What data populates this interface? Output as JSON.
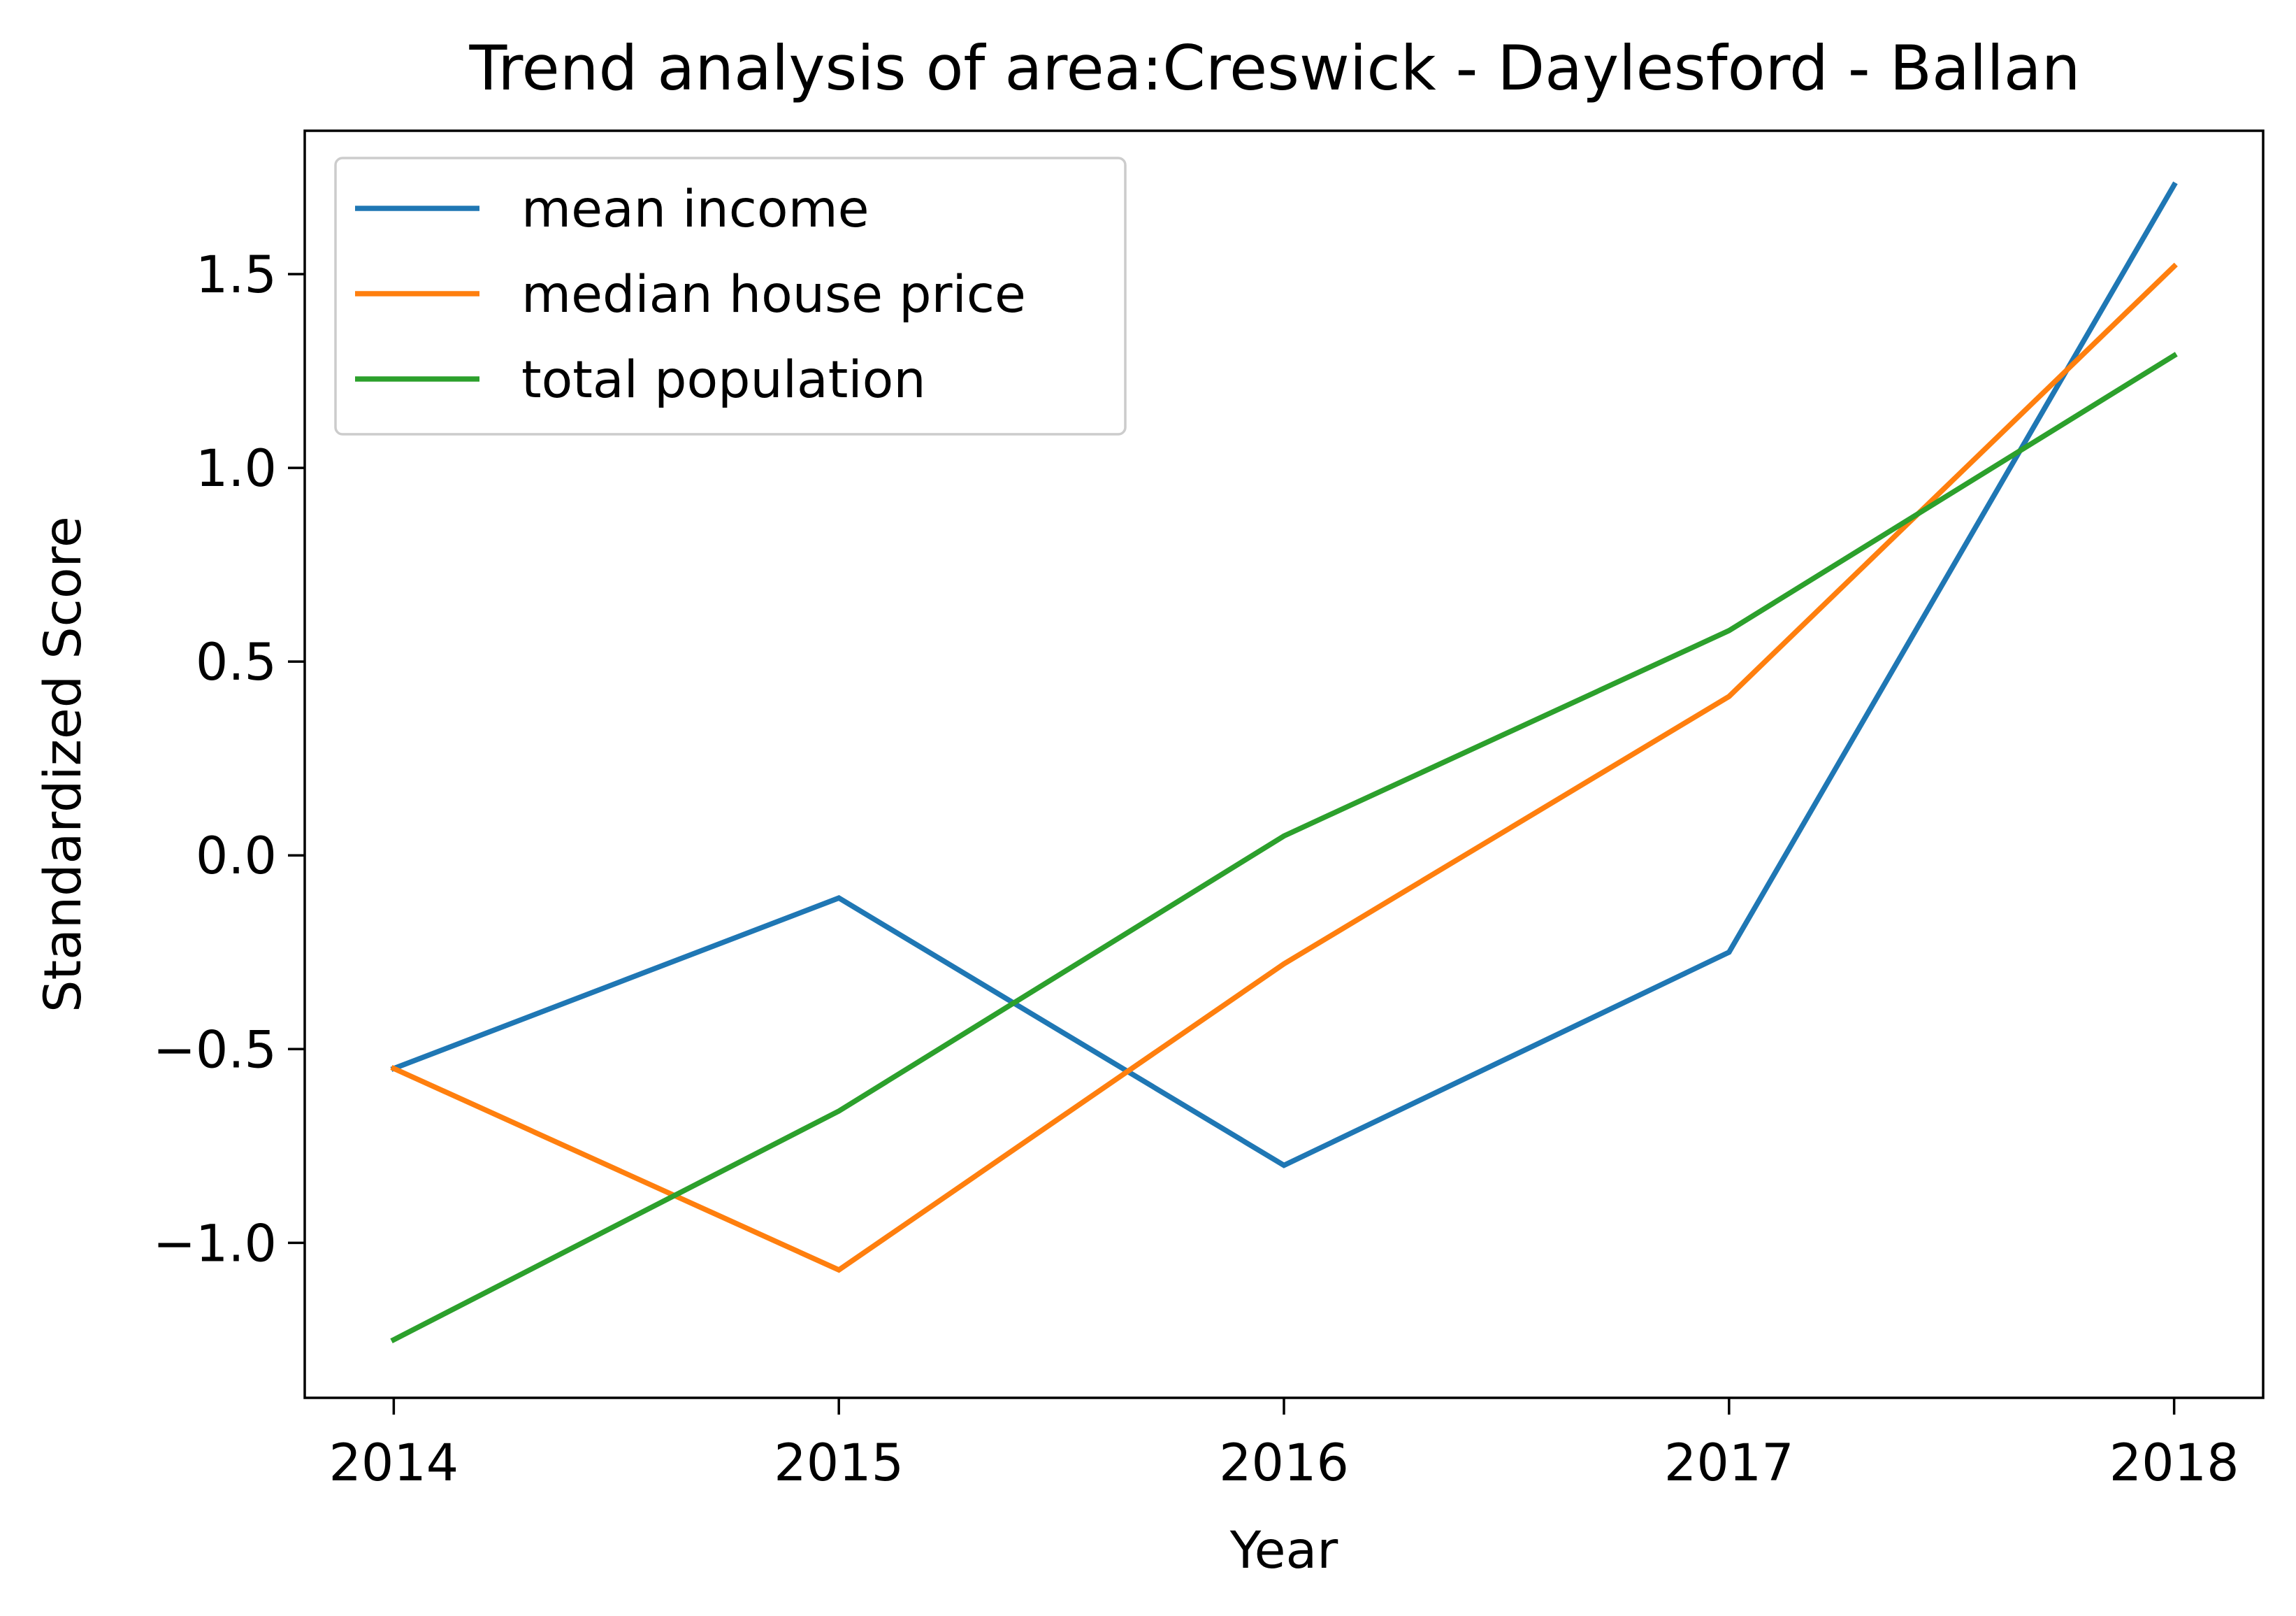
{
  "chart_data": {
    "type": "line",
    "title": "Trend analysis of area:Creswick - Daylesford - Ballan",
    "xlabel": "Year",
    "ylabel": "Standardized Score",
    "categories": [
      "2014",
      "2015",
      "2016",
      "2017",
      "2018"
    ],
    "x": [
      2014,
      2015,
      2016,
      2017,
      2018
    ],
    "xlim": [
      2013.8,
      2018.2
    ],
    "ylim": [
      -1.4,
      1.87
    ],
    "yticks": [
      -1.0,
      -0.5,
      0.0,
      0.5,
      1.0,
      1.5
    ],
    "ytick_labels": [
      "−1.0",
      "−0.5",
      "0.0",
      "0.5",
      "1.0",
      "1.5"
    ],
    "grid": false,
    "legend_position": "upper-left",
    "series": [
      {
        "name": "mean income",
        "color": "#1f77b4",
        "values": [
          -0.55,
          -0.11,
          -0.8,
          -0.25,
          1.73
        ]
      },
      {
        "name": "median house price",
        "color": "#ff7f0e",
        "values": [
          -0.55,
          -1.07,
          -0.28,
          0.41,
          1.52
        ]
      },
      {
        "name": "total population",
        "color": "#2ca02c",
        "values": [
          -1.25,
          -0.66,
          0.05,
          0.58,
          1.29
        ]
      }
    ]
  }
}
